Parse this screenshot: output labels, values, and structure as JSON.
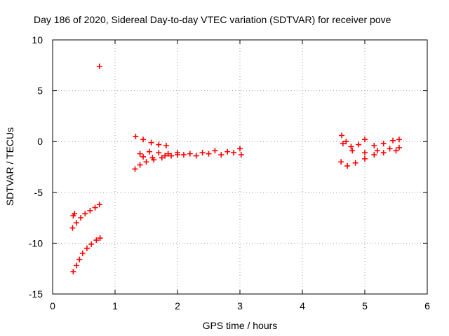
{
  "chart_data": {
    "type": "scatter",
    "title": "Day 186 of 2020, Sidereal Day-to-day VTEC variation (SDTVAR) for receiver pove",
    "xlabel": "GPS time / hours",
    "ylabel": "SDTVAR / TECUs",
    "xlim": [
      0,
      6
    ],
    "ylim": [
      -15,
      10
    ],
    "x_ticks": [
      0,
      1,
      2,
      3,
      4,
      5,
      6
    ],
    "y_ticks": [
      -15,
      -10,
      -5,
      0,
      5,
      10
    ],
    "x_tick_labels": [
      "0",
      "1",
      "2",
      "3",
      "4",
      "5",
      "6"
    ],
    "y_tick_labels": [
      "-15",
      "-10",
      "-5",
      "0",
      "5",
      "10"
    ],
    "grid": true,
    "marker": "plus",
    "color": "#ff0000",
    "series": [
      {
        "points": [
          [
            0.75,
            7.4
          ],
          [
            0.33,
            -7.3
          ],
          [
            0.35,
            -7.1
          ],
          [
            0.32,
            -8.5
          ],
          [
            0.38,
            -8.0
          ],
          [
            0.45,
            -7.5
          ],
          [
            0.52,
            -7.1
          ],
          [
            0.6,
            -6.8
          ],
          [
            0.68,
            -6.5
          ],
          [
            0.75,
            -6.2
          ],
          [
            0.33,
            -12.8
          ],
          [
            0.38,
            -12.2
          ],
          [
            0.43,
            -11.6
          ],
          [
            0.48,
            -11.0
          ],
          [
            0.55,
            -10.5
          ],
          [
            0.62,
            -10.1
          ],
          [
            0.7,
            -9.7
          ],
          [
            0.76,
            -9.5
          ],
          [
            1.33,
            0.5
          ],
          [
            1.45,
            0.2
          ],
          [
            1.58,
            -0.1
          ],
          [
            1.7,
            -0.3
          ],
          [
            1.82,
            -0.4
          ],
          [
            1.32,
            -2.7
          ],
          [
            1.4,
            -2.3
          ],
          [
            1.5,
            -2.0
          ],
          [
            1.62,
            -1.8
          ],
          [
            1.75,
            -1.6
          ],
          [
            1.9,
            -1.4
          ],
          [
            1.4,
            -1.2
          ],
          [
            1.55,
            -1.0
          ],
          [
            1.7,
            -1.1
          ],
          [
            1.85,
            -1.2
          ],
          [
            2.0,
            -1.1
          ],
          [
            2.1,
            -1.3
          ],
          [
            1.45,
            -1.5
          ],
          [
            1.6,
            -1.6
          ],
          [
            1.8,
            -1.4
          ],
          [
            2.0,
            -1.3
          ],
          [
            2.2,
            -1.2
          ],
          [
            2.4,
            -1.1
          ],
          [
            2.3,
            -1.4
          ],
          [
            2.5,
            -1.2
          ],
          [
            2.6,
            -0.9
          ],
          [
            2.7,
            -1.3
          ],
          [
            2.8,
            -1.0
          ],
          [
            2.9,
            -1.1
          ],
          [
            3.0,
            -0.7
          ],
          [
            3.02,
            -1.3
          ],
          [
            4.63,
            0.6
          ],
          [
            4.7,
            0.0
          ],
          [
            4.78,
            -0.5
          ],
          [
            4.9,
            -0.3
          ],
          [
            5.0,
            0.2
          ],
          [
            5.15,
            -0.4
          ],
          [
            5.3,
            -0.2
          ],
          [
            5.45,
            0.1
          ],
          [
            5.55,
            0.2
          ],
          [
            4.65,
            -0.2
          ],
          [
            4.8,
            -0.9
          ],
          [
            5.0,
            -1.1
          ],
          [
            5.2,
            -0.9
          ],
          [
            5.4,
            -0.7
          ],
          [
            5.55,
            -0.6
          ],
          [
            4.62,
            -2.0
          ],
          [
            4.72,
            -2.4
          ],
          [
            4.85,
            -2.1
          ],
          [
            5.0,
            -1.7
          ],
          [
            5.15,
            -1.3
          ],
          [
            5.3,
            -1.1
          ],
          [
            5.5,
            -0.9
          ]
        ]
      }
    ]
  }
}
